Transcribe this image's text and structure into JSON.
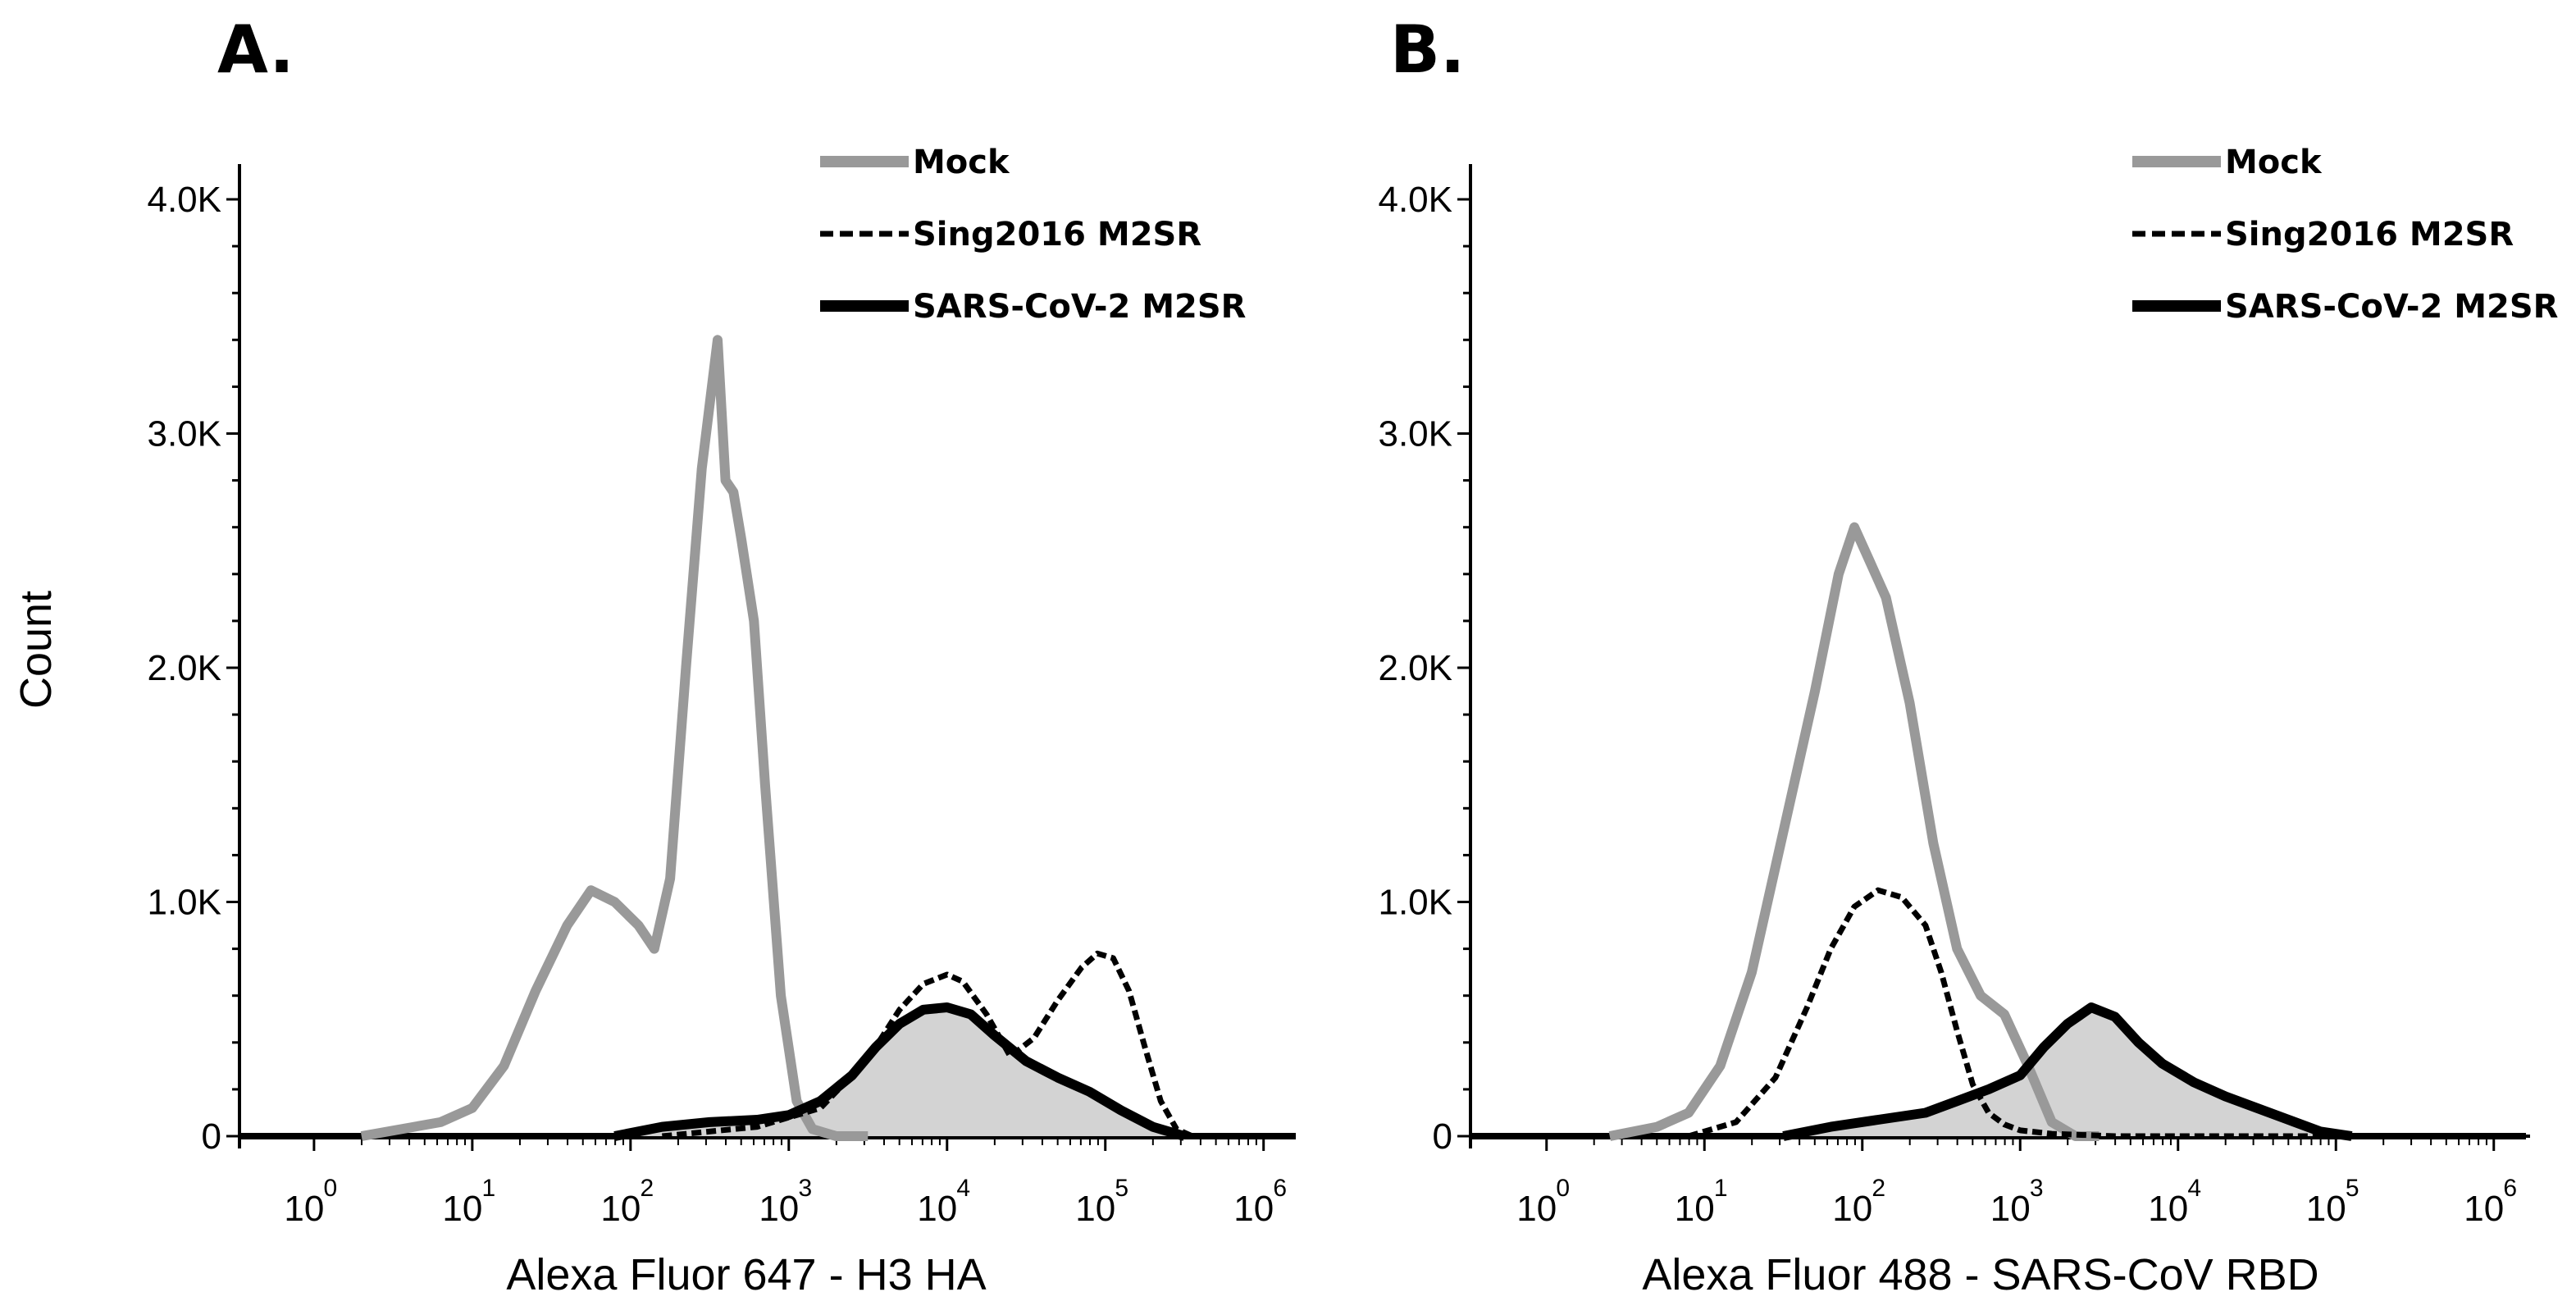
{
  "figure": {
    "shared_ylabel": "Count"
  },
  "colors": {
    "mock": "#999999",
    "sing": "#000000",
    "sars": "#000000",
    "fill": "#d3d3d3"
  },
  "chart_data": [
    {
      "type": "line",
      "panel_label": "A.",
      "xlabel": "Alexa Fluor 647 - H3 HA",
      "ylabel": "Count",
      "x_scale": "log10",
      "xlim": [
        -0.3,
        6.1
      ],
      "ylim": [
        0,
        4000
      ],
      "x_tick_labels": [
        {
          "base": "10",
          "exp": "0",
          "value": 0
        },
        {
          "base": "10",
          "exp": "1",
          "value": 1
        },
        {
          "base": "10",
          "exp": "2",
          "value": 2
        },
        {
          "base": "10",
          "exp": "3",
          "value": 3
        },
        {
          "base": "10",
          "exp": "4",
          "value": 4
        },
        {
          "base": "10",
          "exp": "5",
          "value": 5
        },
        {
          "base": "10",
          "exp": "6",
          "value": 6
        }
      ],
      "y_tick_labels": [
        {
          "label": "0",
          "value": 0
        },
        {
          "label": "1.0K",
          "value": 1000
        },
        {
          "label": "2.0K",
          "value": 2000
        },
        {
          "label": "3.0K",
          "value": 3000
        },
        {
          "label": "4.0K",
          "value": 4000
        }
      ],
      "legend": [
        "Mock",
        "Sing2016 M2SR",
        "SARS-CoV-2 M2SR"
      ],
      "series": [
        {
          "name": "Mock",
          "style": "solid-gray",
          "log_x": [
            0.3,
            0.8,
            1.0,
            1.2,
            1.4,
            1.6,
            1.75,
            1.9,
            2.05,
            2.15,
            2.25,
            2.35,
            2.45,
            2.55,
            2.6,
            2.65,
            2.7,
            2.78,
            2.85,
            2.95,
            3.05,
            3.15,
            3.3,
            3.5
          ],
          "y": [
            0,
            60,
            120,
            300,
            620,
            900,
            1050,
            1000,
            900,
            800,
            1100,
            2000,
            2850,
            3400,
            2800,
            2750,
            2550,
            2200,
            1500,
            600,
            150,
            30,
            0,
            0
          ]
        },
        {
          "name": "Sing2016 M2SR",
          "style": "dashed-black",
          "log_x": [
            2.2,
            2.8,
            3.2,
            3.5,
            3.7,
            3.85,
            4.0,
            4.1,
            4.25,
            4.4,
            4.55,
            4.7,
            4.85,
            4.95,
            5.05,
            5.15,
            5.25,
            5.35,
            5.45,
            5.55
          ],
          "y": [
            0,
            40,
            120,
            330,
            540,
            650,
            690,
            660,
            520,
            340,
            420,
            580,
            720,
            780,
            760,
            620,
            380,
            150,
            30,
            0
          ]
        },
        {
          "name": "SARS-CoV-2 M2SR",
          "style": "solid-black-filled",
          "log_x": [
            1.9,
            2.2,
            2.5,
            2.8,
            3.0,
            3.2,
            3.4,
            3.55,
            3.7,
            3.85,
            4.0,
            4.15,
            4.3,
            4.5,
            4.7,
            4.9,
            5.1,
            5.3,
            5.5
          ],
          "y": [
            0,
            40,
            60,
            70,
            90,
            150,
            260,
            380,
            480,
            540,
            550,
            520,
            430,
            320,
            250,
            190,
            110,
            40,
            0
          ]
        }
      ]
    },
    {
      "type": "line",
      "panel_label": "B.",
      "xlabel": "Alexa Fluor 488 - SARS-CoV RBD",
      "ylabel": "",
      "x_scale": "log10",
      "xlim": [
        -0.3,
        6.1
      ],
      "ylim": [
        0,
        4000
      ],
      "x_tick_labels": [
        {
          "base": "10",
          "exp": "0",
          "value": 0
        },
        {
          "base": "10",
          "exp": "1",
          "value": 1
        },
        {
          "base": "10",
          "exp": "2",
          "value": 2
        },
        {
          "base": "10",
          "exp": "3",
          "value": 3
        },
        {
          "base": "10",
          "exp": "4",
          "value": 4
        },
        {
          "base": "10",
          "exp": "5",
          "value": 5
        },
        {
          "base": "10",
          "exp": "6",
          "value": 6
        }
      ],
      "y_tick_labels": [
        {
          "label": "0",
          "value": 0
        },
        {
          "label": "1.0K",
          "value": 1000
        },
        {
          "label": "2.0K",
          "value": 2000
        },
        {
          "label": "3.0K",
          "value": 3000
        },
        {
          "label": "4.0K",
          "value": 4000
        }
      ],
      "legend": [
        "Mock",
        "Sing2016 M2SR",
        "SARS-CoV-2 M2SR"
      ],
      "series": [
        {
          "name": "Mock",
          "style": "solid-gray",
          "log_x": [
            0.4,
            0.7,
            0.9,
            1.1,
            1.3,
            1.5,
            1.7,
            1.85,
            1.95,
            2.05,
            2.15,
            2.3,
            2.45,
            2.6,
            2.75,
            2.9,
            3.05,
            3.2,
            3.35,
            3.5
          ],
          "y": [
            0,
            40,
            100,
            300,
            700,
            1300,
            1900,
            2400,
            2600,
            2450,
            2300,
            1850,
            1250,
            800,
            600,
            520,
            300,
            60,
            0,
            0
          ]
        },
        {
          "name": "Sing2016 M2SR",
          "style": "dashed-black",
          "log_x": [
            0.9,
            1.2,
            1.45,
            1.65,
            1.8,
            1.95,
            2.1,
            2.25,
            2.4,
            2.5,
            2.6,
            2.7,
            2.8,
            2.9,
            3.0,
            3.2,
            3.6,
            4.2,
            5.0,
            5.5
          ],
          "y": [
            0,
            60,
            250,
            550,
            800,
            980,
            1050,
            1020,
            900,
            700,
            450,
            220,
            100,
            50,
            25,
            10,
            0,
            0,
            0,
            0
          ]
        },
        {
          "name": "SARS-CoV-2 M2SR",
          "style": "solid-black-filled",
          "log_x": [
            1.5,
            1.8,
            2.1,
            2.4,
            2.6,
            2.8,
            3.0,
            3.15,
            3.3,
            3.45,
            3.6,
            3.75,
            3.9,
            4.1,
            4.3,
            4.5,
            4.7,
            4.9,
            5.1
          ],
          "y": [
            0,
            40,
            70,
            100,
            150,
            200,
            260,
            380,
            480,
            550,
            510,
            400,
            310,
            230,
            170,
            120,
            70,
            20,
            0
          ]
        }
      ]
    }
  ]
}
